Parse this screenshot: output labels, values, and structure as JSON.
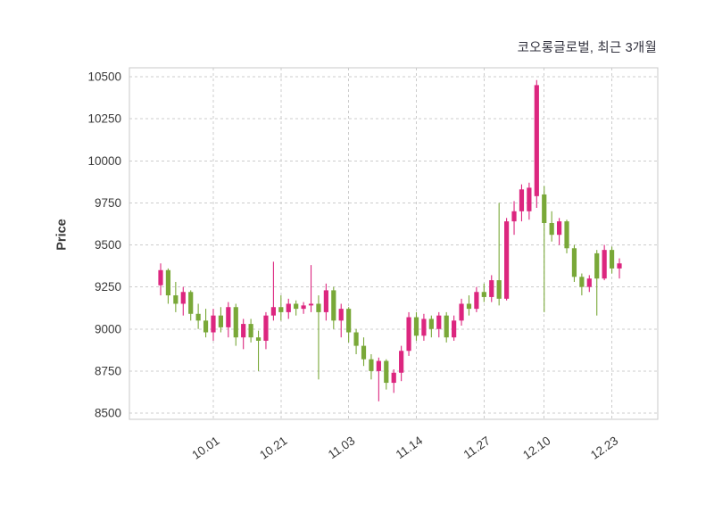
{
  "header": {
    "title": "코오롱글로벌, 최근 3개월"
  },
  "chart_data": {
    "type": "candlestick",
    "title": "코오롱글로벌, 최근 3개월",
    "ylabel": "Price",
    "ylim": [
      8500,
      10500
    ],
    "y_ticks": [
      8500,
      8750,
      9000,
      9250,
      9500,
      9750,
      10000,
      10250,
      10500
    ],
    "x_tick_labels": [
      "10.01",
      "10.21",
      "11.03",
      "11.14",
      "11.27",
      "12.10",
      "12.23"
    ],
    "x_tick_indices": [
      7,
      16,
      25,
      34,
      43,
      51,
      60
    ],
    "grid": true,
    "legend": "none",
    "colors": {
      "up": "#dc267f",
      "down": "#79a838",
      "grid": "#cccccc",
      "spine": "#c8c8c8",
      "tick_text": "#3a3a3a",
      "background": "#ffffff"
    },
    "candles_ohlc": [
      [
        9260,
        9390,
        9200,
        9350
      ],
      [
        9350,
        9360,
        9150,
        9200
      ],
      [
        9200,
        9280,
        9100,
        9150
      ],
      [
        9150,
        9250,
        9080,
        9220
      ],
      [
        9220,
        9230,
        9050,
        9090
      ],
      [
        9090,
        9150,
        9000,
        9050
      ],
      [
        9050,
        9120,
        8950,
        8980
      ],
      [
        8980,
        9120,
        8930,
        9080
      ],
      [
        9080,
        9130,
        8980,
        9010
      ],
      [
        9010,
        9160,
        8950,
        9130
      ],
      [
        9130,
        9150,
        8900,
        8950
      ],
      [
        8950,
        9060,
        8880,
        9030
      ],
      [
        9030,
        9060,
        8920,
        8950
      ],
      [
        8950,
        8990,
        8750,
        8930
      ],
      [
        8930,
        9100,
        8880,
        9080
      ],
      [
        9080,
        9400,
        9050,
        9130
      ],
      [
        9130,
        9200,
        9050,
        9100
      ],
      [
        9100,
        9180,
        9060,
        9150
      ],
      [
        9150,
        9170,
        9080,
        9120
      ],
      [
        9120,
        9160,
        9090,
        9140
      ],
      [
        9140,
        9380,
        9100,
        9150
      ],
      [
        9150,
        9200,
        8700,
        9100
      ],
      [
        9100,
        9270,
        9050,
        9230
      ],
      [
        9230,
        9250,
        9000,
        9050
      ],
      [
        9050,
        9150,
        8950,
        9120
      ],
      [
        9120,
        9130,
        8920,
        8980
      ],
      [
        8980,
        9000,
        8850,
        8900
      ],
      [
        8900,
        8950,
        8780,
        8820
      ],
      [
        8820,
        8850,
        8700,
        8750
      ],
      [
        8750,
        8830,
        8570,
        8810
      ],
      [
        8810,
        8820,
        8640,
        8680
      ],
      [
        8680,
        8760,
        8620,
        8740
      ],
      [
        8740,
        8900,
        8690,
        8870
      ],
      [
        8870,
        9100,
        8840,
        9070
      ],
      [
        9070,
        9100,
        8930,
        8960
      ],
      [
        8960,
        9090,
        8930,
        9060
      ],
      [
        9060,
        9080,
        8950,
        9000
      ],
      [
        9000,
        9100,
        8950,
        9080
      ],
      [
        9080,
        9100,
        8920,
        8950
      ],
      [
        8950,
        9080,
        8930,
        9050
      ],
      [
        9050,
        9180,
        9020,
        9150
      ],
      [
        9150,
        9200,
        9080,
        9120
      ],
      [
        9120,
        9250,
        9100,
        9220
      ],
      [
        9220,
        9270,
        9160,
        9190
      ],
      [
        9190,
        9320,
        9160,
        9290
      ],
      [
        9290,
        9750,
        9140,
        9180
      ],
      [
        9180,
        9660,
        9170,
        9640
      ],
      [
        9640,
        9760,
        9560,
        9700
      ],
      [
        9700,
        9860,
        9640,
        9830
      ],
      [
        9700,
        9870,
        9650,
        9840
      ],
      [
        9790,
        10480,
        9720,
        10450
      ],
      [
        9800,
        9850,
        9100,
        9630
      ],
      [
        9630,
        9700,
        9520,
        9560
      ],
      [
        9560,
        9660,
        9500,
        9640
      ],
      [
        9640,
        9650,
        9450,
        9480
      ],
      [
        9480,
        9500,
        9280,
        9310
      ],
      [
        9310,
        9330,
        9200,
        9250
      ],
      [
        9250,
        9320,
        9220,
        9300
      ],
      [
        9450,
        9470,
        9080,
        9300
      ],
      [
        9300,
        9500,
        9290,
        9470
      ],
      [
        9470,
        9490,
        9330,
        9360
      ],
      [
        9360,
        9420,
        9300,
        9390
      ]
    ]
  }
}
